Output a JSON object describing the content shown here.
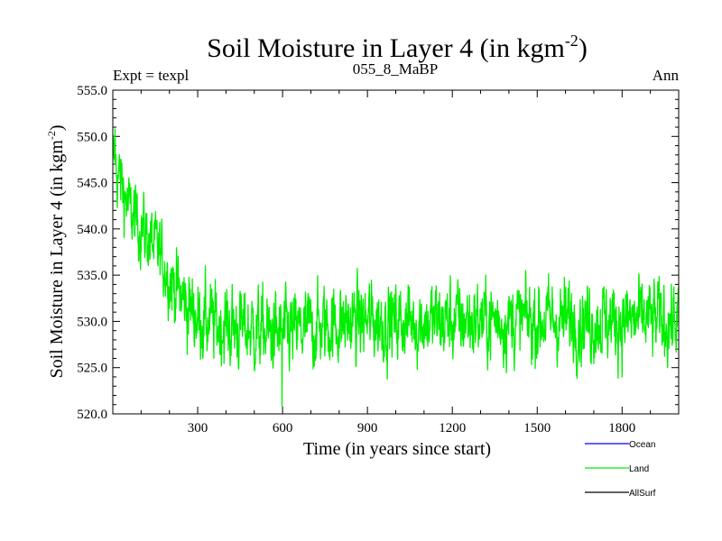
{
  "chart_data": {
    "type": "line",
    "title": "Soil Moisture in Layer 4 (in kgm",
    "title_sup": "-2",
    "title_end": ")",
    "subtitle_left": "Expt = texpl",
    "subtitle_center": "055_8_MaBP",
    "subtitle_right": "Ann",
    "xlabel": "Time (in years since start)",
    "ylabel": "Soil Moisture in Layer 4 (in kgm",
    "ylabel_sup": "-2",
    "ylabel_end": ")",
    "xlim": [
      0,
      2000
    ],
    "ylim": [
      520,
      555
    ],
    "x_ticks": [
      300,
      600,
      900,
      1200,
      1500,
      1800
    ],
    "x_tick_labels": [
      "300",
      "600",
      "900",
      "1200",
      "1500",
      "1800"
    ],
    "y_ticks": [
      520,
      525,
      530,
      535,
      540,
      545,
      550,
      555
    ],
    "y_tick_labels": [
      "520.0",
      "525.0",
      "530.0",
      "535.0",
      "540.0",
      "545.0",
      "550.0",
      "555.0"
    ],
    "legend": [
      {
        "name": "Ocean",
        "color": "#0000ff"
      },
      {
        "name": "Land",
        "color": "#00ee00"
      },
      {
        "name": "AllSurf",
        "color": "#000000"
      }
    ],
    "series": [
      {
        "name": "Land",
        "color": "#00ee00",
        "x_start": 0,
        "x_step": 20,
        "values": [
          547.5,
          545.8,
          544.0,
          541.8,
          541.0,
          540.2,
          539.4,
          538.3,
          537.5,
          536.3,
          535.0,
          533.8,
          532.7,
          531.8,
          531.1,
          530.5,
          530.1,
          529.9,
          529.7,
          529.6,
          529.5,
          529.4,
          529.3,
          529.2,
          529.1,
          529.0,
          528.9,
          528.8,
          528.7,
          528.6,
          528.6,
          528.7,
          528.8,
          528.9,
          529.0,
          529.2,
          529.4,
          529.5,
          529.6,
          529.7,
          529.8,
          529.9,
          529.9,
          530.0,
          530.0,
          530.0,
          530.0,
          530.0,
          530.0,
          530.0,
          530.0,
          530.0,
          530.0,
          530.0,
          530.0,
          530.0,
          530.0,
          530.0,
          530.0,
          530.0,
          530.1,
          530.1,
          530.1,
          530.1,
          530.1,
          530.1,
          530.1,
          530.1,
          530.1,
          530.1,
          530.1,
          530.1,
          530.1,
          530.1,
          530.1,
          530.1,
          530.1,
          530.1,
          530.1,
          530.1,
          530.1,
          530.1,
          530.1,
          530.1,
          530.1,
          530.1,
          530.1,
          530.1,
          530.1,
          530.1,
          530.1,
          530.1,
          530.1,
          530.1,
          530.1,
          530.1,
          530.1,
          530.1,
          530.1,
          530.1,
          530.1
        ]
      },
      {
        "name": "Ocean",
        "color": "#0000ff",
        "values": []
      },
      {
        "name": "AllSurf",
        "color": "#000000",
        "values": []
      }
    ]
  }
}
